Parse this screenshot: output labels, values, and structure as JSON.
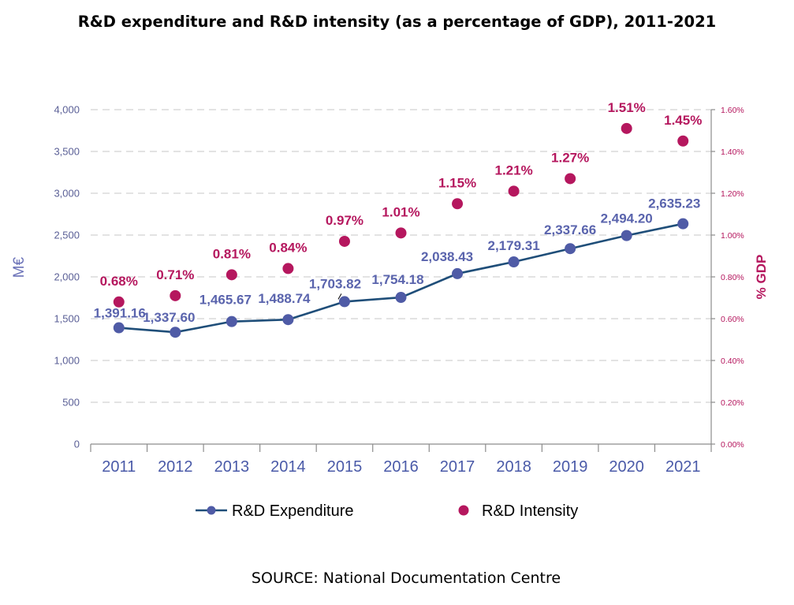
{
  "chart_data": {
    "type": "line",
    "title": "R&D expenditure and R&D intensity (as a percentage of GDP), 2011-2021",
    "categories": [
      "2011",
      "2012",
      "2013",
      "2014",
      "2015",
      "2016",
      "2017",
      "2018",
      "2019",
      "2020",
      "2021"
    ],
    "series": [
      {
        "name": "R&D Expenditure",
        "type": "line",
        "axis": "left",
        "color": "#1f4e79",
        "marker_color": "#4f5ba6",
        "values": [
          1391.16,
          1337.6,
          1465.67,
          1488.74,
          1703.82,
          1754.18,
          2038.43,
          2179.31,
          2337.66,
          2494.2,
          2635.23
        ],
        "labels": [
          "1,391.16",
          "1,337.60",
          "1,465.67",
          "1,488.74",
          "1,703.82",
          "1,754.18",
          "2,038.43",
          "2,179.31",
          "2,337.66",
          "2,494.20",
          "2,635.23"
        ]
      },
      {
        "name": "R&D Intensity",
        "type": "scatter",
        "axis": "right",
        "color": "#b5175e",
        "values": [
          0.68,
          0.71,
          0.81,
          0.84,
          0.97,
          1.01,
          1.15,
          1.21,
          1.27,
          1.51,
          1.45
        ],
        "labels": [
          "0.68%",
          "0.71%",
          "0.81%",
          "0.84%",
          "0.97%",
          "1.01%",
          "1.15%",
          "1.21%",
          "1.27%",
          "1.51%",
          "1.45%"
        ]
      }
    ],
    "y_left": {
      "label": "M€",
      "min": 0,
      "max": 4000,
      "step": 500,
      "ticks": [
        "0",
        "500",
        "1,000",
        "1,500",
        "2,000",
        "2,500",
        "3,000",
        "3,500",
        "4,000"
      ]
    },
    "y_right": {
      "label": "% GDP",
      "min": 0,
      "max": 1.6,
      "step": 0.2,
      "ticks": [
        "0.00%",
        "0.20%",
        "0.40%",
        "0.60%",
        "0.80%",
        "1.00%",
        "1.20%",
        "1.40%",
        "1.60%"
      ]
    },
    "grid": true,
    "legend_position": "bottom",
    "source": "SOURCE: National Documentation Centre"
  }
}
